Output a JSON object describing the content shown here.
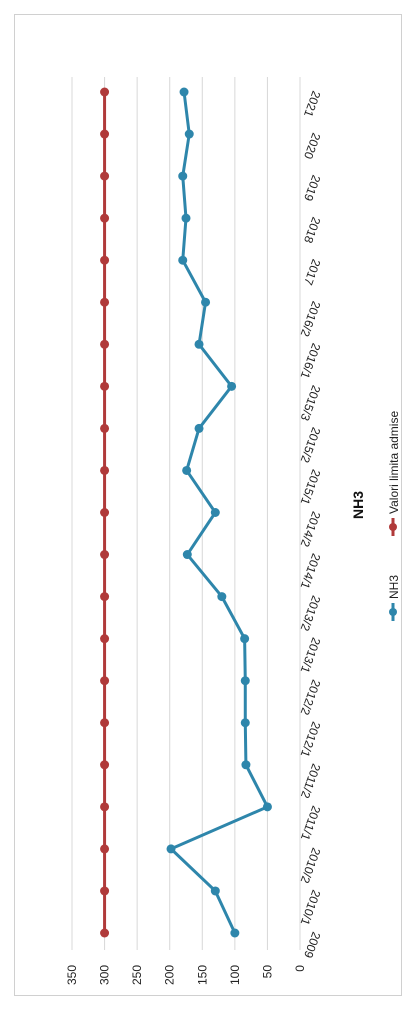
{
  "chart_data": {
    "type": "line",
    "title": "NH3",
    "categories": [
      "2009",
      "2010/1",
      "2010/2",
      "2011/1",
      "2011/2",
      "2012/1",
      "2012/2",
      "2013/1",
      "2013/2",
      "2014/1",
      "2014/2",
      "2015/1",
      "2015/2",
      "2015/3",
      "2016/1",
      "2016/2",
      "2017",
      "2018",
      "2019",
      "2020",
      "2021"
    ],
    "series": [
      {
        "name": "NH3",
        "color": "#2e86ab",
        "values": [
          100,
          130,
          198,
          50,
          83,
          84,
          84,
          85,
          120,
          173,
          130,
          174,
          155,
          105,
          155,
          145,
          180,
          175,
          180,
          170,
          178
        ]
      },
      {
        "name": "Valori limita admise",
        "color": "#b03a3a",
        "values": [
          300,
          300,
          300,
          300,
          300,
          300,
          300,
          300,
          300,
          300,
          300,
          300,
          300,
          300,
          300,
          300,
          300,
          300,
          300,
          300,
          300
        ]
      }
    ],
    "ylim": [
      0,
      350
    ],
    "yticks": [
      "0",
      "50",
      "100",
      "150",
      "200",
      "250",
      "300",
      "350"
    ],
    "grid": true,
    "legend_placement": "bottom",
    "orientation": "rotated-90"
  }
}
